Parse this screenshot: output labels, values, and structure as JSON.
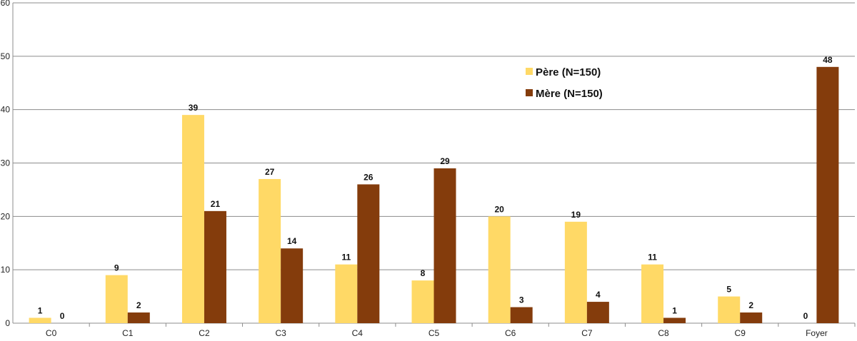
{
  "chart_data": {
    "type": "bar",
    "title": "",
    "xlabel": "",
    "ylabel": "",
    "ylim": [
      0,
      60
    ],
    "yticks": [
      0,
      10,
      20,
      30,
      40,
      50,
      60
    ],
    "grid": true,
    "legend_position": "upper-right-inside",
    "categories": [
      "C0",
      "C1",
      "C2",
      "C3",
      "C4",
      "C5",
      "C6",
      "C7",
      "C8",
      "C9",
      "Foyer"
    ],
    "series": [
      {
        "name": "Père (N=150)",
        "color": "#FFD966",
        "values": [
          1,
          9,
          39,
          27,
          11,
          8,
          20,
          19,
          11,
          5,
          0
        ]
      },
      {
        "name": "Mère (N=150)",
        "color": "#843C0C",
        "values": [
          0,
          2,
          21,
          14,
          26,
          29,
          3,
          4,
          1,
          2,
          48
        ]
      }
    ]
  }
}
